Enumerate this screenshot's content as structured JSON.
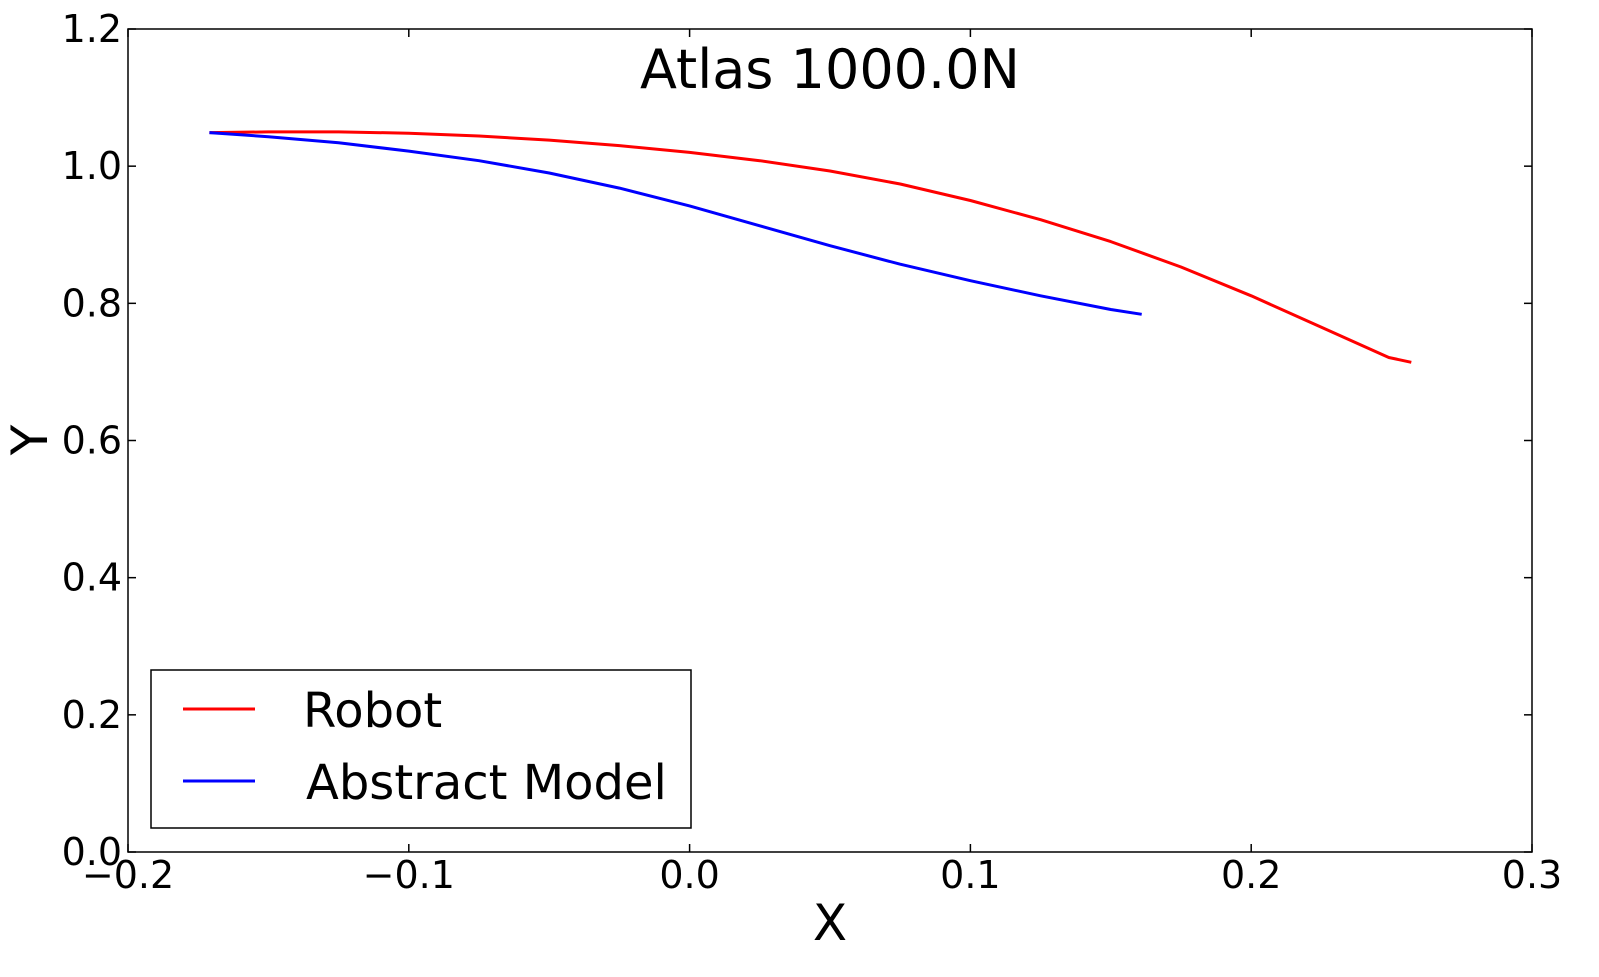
{
  "chart_data": {
    "type": "line",
    "title": "Atlas 1000.0N",
    "xlabel": "X",
    "ylabel": "Y",
    "xlim": [
      -0.2,
      0.3
    ],
    "ylim": [
      0.0,
      1.2
    ],
    "xticks": [
      -0.2,
      -0.1,
      0.0,
      0.1,
      0.2,
      0.3
    ],
    "xtick_labels": [
      "−0.2",
      "−0.1",
      "0.0",
      "0.1",
      "0.2",
      "0.3"
    ],
    "yticks": [
      0.0,
      0.2,
      0.4,
      0.6,
      0.8,
      1.0,
      1.2
    ],
    "ytick_labels": [
      "0.0",
      "0.2",
      "0.4",
      "0.6",
      "0.8",
      "1.0",
      "1.2"
    ],
    "grid": false,
    "legend_position": "lower-left",
    "series": [
      {
        "name": "Robot",
        "color": "#ff0000",
        "points": [
          [
            -0.171,
            1.049
          ],
          [
            -0.15,
            1.05
          ],
          [
            -0.125,
            1.05
          ],
          [
            -0.1,
            1.048
          ],
          [
            -0.075,
            1.044
          ],
          [
            -0.05,
            1.038
          ],
          [
            -0.025,
            1.03
          ],
          [
            0.0,
            1.02
          ],
          [
            0.025,
            1.008
          ],
          [
            0.05,
            0.993
          ],
          [
            0.075,
            0.974
          ],
          [
            0.1,
            0.95
          ],
          [
            0.125,
            0.922
          ],
          [
            0.15,
            0.89
          ],
          [
            0.175,
            0.853
          ],
          [
            0.2,
            0.811
          ],
          [
            0.225,
            0.765
          ],
          [
            0.249,
            0.721
          ],
          [
            0.257,
            0.714
          ]
        ]
      },
      {
        "name": "Abstract Model",
        "color": "#0000ff",
        "points": [
          [
            -0.171,
            1.049
          ],
          [
            -0.15,
            1.043
          ],
          [
            -0.125,
            1.034
          ],
          [
            -0.1,
            1.022
          ],
          [
            -0.075,
            1.008
          ],
          [
            -0.05,
            0.99
          ],
          [
            -0.025,
            0.968
          ],
          [
            0.0,
            0.942
          ],
          [
            0.025,
            0.913
          ],
          [
            0.05,
            0.884
          ],
          [
            0.075,
            0.857
          ],
          [
            0.1,
            0.833
          ],
          [
            0.125,
            0.811
          ],
          [
            0.15,
            0.791
          ],
          [
            0.161,
            0.784
          ]
        ]
      }
    ]
  }
}
